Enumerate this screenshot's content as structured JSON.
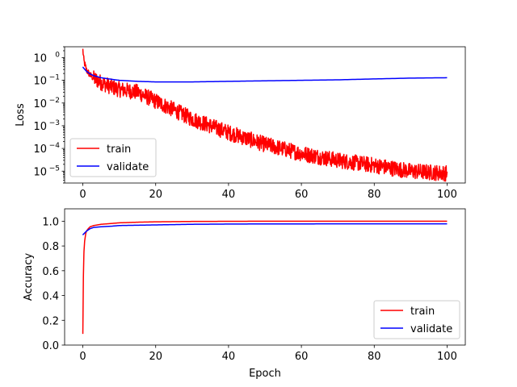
{
  "chart_data": [
    {
      "type": "line",
      "ylabel": "Loss",
      "xlabel": "",
      "yscale": "log",
      "xlim": [
        -5,
        105
      ],
      "ylim": [
        3e-06,
        3
      ],
      "x_ticks": [
        0,
        20,
        40,
        60,
        80,
        100
      ],
      "x_tick_labels": [
        "0",
        "20",
        "40",
        "60",
        "80",
        "100"
      ],
      "y_ticks": [
        1e-05,
        0.0001,
        0.001,
        0.01,
        0.1,
        1
      ],
      "y_tick_labels": [
        {
          "base": "10",
          "exp": "−5"
        },
        {
          "base": "10",
          "exp": "−4"
        },
        {
          "base": "10",
          "exp": "−3"
        },
        {
          "base": "10",
          "exp": "−2"
        },
        {
          "base": "10",
          "exp": "−1"
        },
        {
          "base": "10",
          "exp": "0"
        }
      ],
      "legend": "lower-left",
      "grid": false,
      "series": [
        {
          "name": "train",
          "color": "#ff0000",
          "noisy": true,
          "x": [
            0,
            0.3,
            1,
            2,
            3,
            5,
            8,
            10,
            15,
            20,
            25,
            30,
            35,
            40,
            50,
            60,
            70,
            80,
            90,
            100
          ],
          "y": [
            2.2,
            0.7,
            0.28,
            0.17,
            0.12,
            0.08,
            0.05,
            0.04,
            0.03,
            0.012,
            0.005,
            0.002,
            0.001,
            0.0005,
            0.00015,
            6e-05,
            3e-05,
            1.8e-05,
            1e-05,
            8e-06
          ]
        },
        {
          "name": "validate",
          "color": "#0000ff",
          "noisy": false,
          "x": [
            0,
            1,
            2,
            3,
            5,
            8,
            10,
            15,
            20,
            25,
            30,
            40,
            50,
            60,
            70,
            80,
            90,
            100
          ],
          "y": [
            0.38,
            0.25,
            0.19,
            0.16,
            0.13,
            0.11,
            0.1,
            0.09,
            0.085,
            0.085,
            0.085,
            0.09,
            0.095,
            0.1,
            0.105,
            0.115,
            0.125,
            0.13
          ]
        }
      ]
    },
    {
      "type": "line",
      "ylabel": "Accuracy",
      "xlabel": "Epoch",
      "yscale": "linear",
      "xlim": [
        -5,
        105
      ],
      "ylim": [
        0.0,
        1.1
      ],
      "x_ticks": [
        0,
        20,
        40,
        60,
        80,
        100
      ],
      "x_tick_labels": [
        "0",
        "20",
        "40",
        "60",
        "80",
        "100"
      ],
      "y_ticks": [
        0.0,
        0.2,
        0.4,
        0.6,
        0.8,
        1.0
      ],
      "y_tick_labels": [
        "0.0",
        "0.2",
        "0.4",
        "0.6",
        "0.8",
        "1.0"
      ],
      "legend": "lower-right",
      "grid": false,
      "series": [
        {
          "name": "train",
          "color": "#ff0000",
          "noisy": false,
          "x": [
            0,
            0.15,
            0.3,
            0.5,
            0.8,
            1,
            1.5,
            2,
            3,
            5,
            8,
            10,
            15,
            20,
            30,
            40,
            50,
            100
          ],
          "y": [
            0.09,
            0.55,
            0.75,
            0.84,
            0.9,
            0.92,
            0.94,
            0.955,
            0.965,
            0.975,
            0.982,
            0.987,
            0.992,
            0.995,
            0.998,
            0.999,
            1.0,
            1.0
          ]
        },
        {
          "name": "validate",
          "color": "#0000ff",
          "noisy": false,
          "x": [
            0,
            1,
            2,
            3,
            5,
            8,
            10,
            20,
            30,
            40,
            50,
            60,
            70,
            80,
            90,
            100
          ],
          "y": [
            0.89,
            0.92,
            0.94,
            0.95,
            0.955,
            0.96,
            0.965,
            0.97,
            0.975,
            0.977,
            0.978,
            0.978,
            0.979,
            0.979,
            0.979,
            0.979
          ]
        }
      ]
    }
  ]
}
